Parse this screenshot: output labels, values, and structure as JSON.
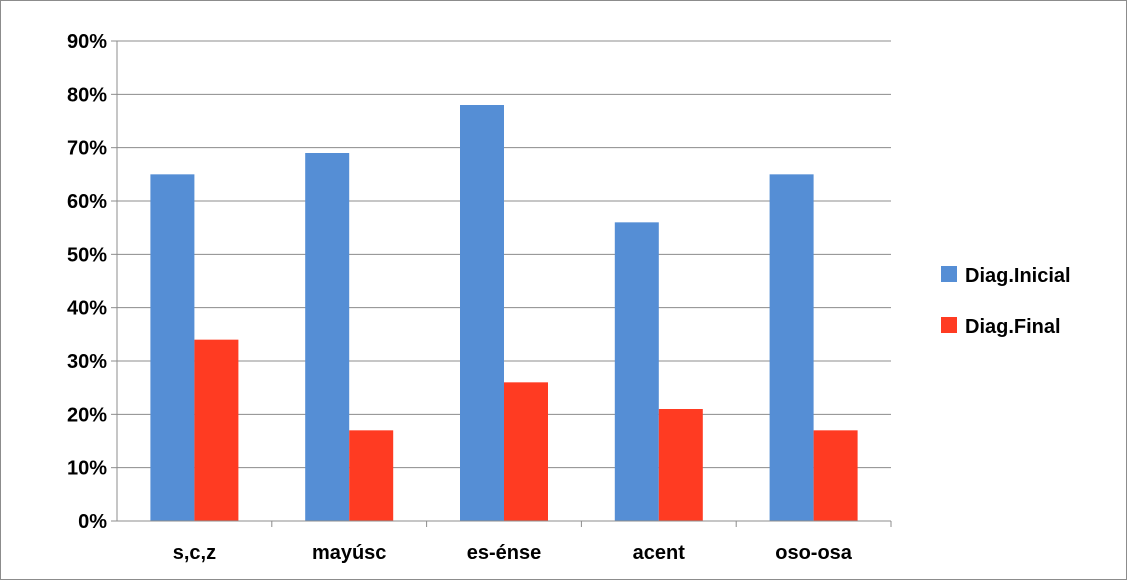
{
  "chart_data": {
    "type": "bar",
    "categories": [
      "s,c,z",
      "mayúsc",
      "es-énse",
      "acent",
      "oso-osa"
    ],
    "series": [
      {
        "name": "Diag.Inicial",
        "color": "#558ED5",
        "values": [
          65,
          69,
          78,
          56,
          65
        ]
      },
      {
        "name": "Diag.Final",
        "color": "#FF3B22",
        "values": [
          34,
          17,
          26,
          21,
          17
        ]
      }
    ],
    "yticks": [
      "0%",
      "10%",
      "20%",
      "30%",
      "40%",
      "50%",
      "60%",
      "70%",
      "80%",
      "90%"
    ],
    "ylim": [
      0,
      90
    ],
    "ystep": 10,
    "grid": true,
    "legend_position": "right",
    "gridline_color": "#8c8c8c"
  }
}
